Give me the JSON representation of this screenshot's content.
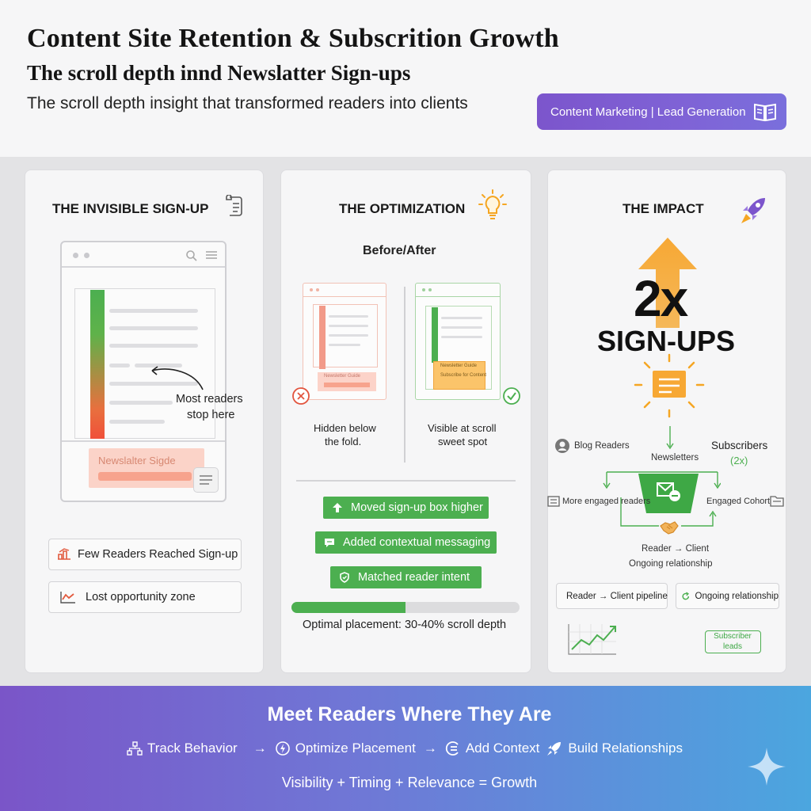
{
  "header": {
    "title": "Content Site Retention & Subscrition Growth",
    "subtitle": "The scroll depth innd Newslatter Sign-ups",
    "tagline": "The scroll depth insight that transformed readers into clients",
    "badge": "Content Marketing | Lead Generation"
  },
  "card1": {
    "title": "THE INVISIBLE SIGN-UP",
    "annotation_line1": "Most readers",
    "annotation_line2": "stop here",
    "signup_box": "Newslalter Sigde",
    "tag1": "Few Readers Reached Sign-up",
    "tag2": "Lost opportunity zone"
  },
  "card2": {
    "title": "THE OPTIMIZATION",
    "subtitle": "Before/After",
    "before_box": "Newsletter Guide",
    "after_box_line1": "Newsletter Guide",
    "after_box_line2": "Subscribe for Content",
    "before_caption_line1": "Hidden below",
    "before_caption_line2": "the fold.",
    "after_caption_line1": "Visible at scroll",
    "after_caption_line2": "sweet spot",
    "actions": [
      "Moved sign-up box higher",
      "Added contextual messaging",
      "Matched reader intent"
    ],
    "progress": 0.5,
    "progress_label": "Optimal placement: 30-40% scroll depth"
  },
  "card3": {
    "title": "THE IMPACT",
    "big_number": "2x",
    "big_label": "SIGN-UPS",
    "blog_readers": "Blog Readers",
    "subscribers": "Subscribers",
    "subscribers_mult": "(2x)",
    "newsletters": "Newsletters",
    "more_engaged": "More engaged readers",
    "engaged_cohort": "Engaged Cohort",
    "reader_client": "Reader → Client",
    "ongoing": "Ongoing relationship",
    "pill1": "Reader → Client pipeline",
    "pill2": "Ongoing relationship",
    "leads_line1": "Subscriber",
    "leads_line2": "leads"
  },
  "footer": {
    "title": "Meet Readers Where They Are",
    "steps": [
      "Track Behavior",
      "Optimize Placement",
      "Add Context",
      "Build Relationships"
    ],
    "arrow": "→",
    "equation": "Visibility + Timing + Relevance = Growth"
  },
  "colors": {
    "green": "#4caf50",
    "orange": "#f5a623",
    "purple": "#7c55cc",
    "red_accent": "#f06a5a"
  }
}
